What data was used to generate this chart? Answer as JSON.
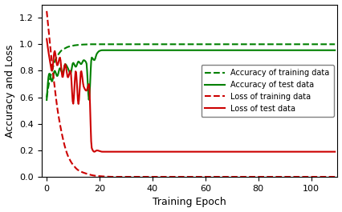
{
  "title": "",
  "xlabel": "Training Epoch",
  "ylabel": "Accuracy and Loss",
  "xlim": [
    -2,
    110
  ],
  "ylim": [
    0,
    1.3
  ],
  "yticks": [
    0.0,
    0.2,
    0.4,
    0.6,
    0.8,
    1.0,
    1.2
  ],
  "xticks": [
    0,
    20,
    40,
    60,
    80,
    100
  ],
  "legend": [
    "Accuracy of training data",
    "Accuracy of test data",
    "Loss of training data",
    "Loss of test data"
  ],
  "train_acc_color": "#008000",
  "test_acc_color": "#008000",
  "train_loss_color": "#cc0000",
  "test_loss_color": "#cc0000",
  "figsize": [
    4.26,
    2.65
  ],
  "dpi": 100,
  "train_acc_x": [
    0,
    1,
    2,
    3,
    4,
    5,
    6,
    7,
    8,
    9,
    10,
    11,
    12,
    13,
    14,
    15,
    16,
    17,
    18,
    19,
    20,
    21,
    22,
    23,
    24,
    25,
    30,
    40,
    50,
    60,
    70,
    80,
    90,
    100,
    109
  ],
  "train_acc_y": [
    0.6,
    0.72,
    0.8,
    0.87,
    0.91,
    0.94,
    0.96,
    0.97,
    0.98,
    0.985,
    0.99,
    0.993,
    0.995,
    0.997,
    0.998,
    0.999,
    1.0,
    1.0,
    1.0,
    1.0,
    1.0,
    1.0,
    1.0,
    1.0,
    1.0,
    1.0,
    1.0,
    1.0,
    1.0,
    1.0,
    1.0,
    1.0,
    1.0,
    1.0,
    1.0
  ],
  "test_acc_x": [
    0,
    1,
    2,
    3,
    4,
    5,
    6,
    7,
    8,
    9,
    10,
    11,
    12,
    13,
    14,
    15,
    16,
    17,
    18,
    19,
    20,
    21,
    22,
    25,
    30,
    40,
    50,
    60,
    70,
    80,
    90,
    100,
    109
  ],
  "test_acc_y": [
    0.58,
    0.78,
    0.72,
    0.8,
    0.76,
    0.82,
    0.78,
    0.85,
    0.82,
    0.78,
    0.86,
    0.83,
    0.87,
    0.85,
    0.88,
    0.86,
    0.58,
    0.9,
    0.88,
    0.93,
    0.95,
    0.955,
    0.955,
    0.955,
    0.955,
    0.955,
    0.955,
    0.955,
    0.955,
    0.955,
    0.955,
    0.955,
    0.955
  ],
  "train_loss_x": [
    0,
    1,
    2,
    3,
    4,
    5,
    6,
    7,
    8,
    9,
    10,
    12,
    15,
    18,
    20,
    22,
    25,
    30,
    40,
    50,
    60,
    109
  ],
  "train_loss_y": [
    1.25,
    1.05,
    0.85,
    0.68,
    0.52,
    0.4,
    0.3,
    0.22,
    0.16,
    0.12,
    0.09,
    0.05,
    0.025,
    0.01,
    0.006,
    0.003,
    0.001,
    0.001,
    0.001,
    0.001,
    0.001,
    0.001
  ],
  "test_loss_x": [
    0,
    1,
    2,
    3,
    4,
    5,
    6,
    7,
    8,
    9,
    10,
    11,
    12,
    13,
    14,
    15,
    16,
    17,
    18,
    19,
    20,
    21,
    22,
    23,
    25,
    30,
    40,
    50,
    60,
    70,
    80,
    90,
    100,
    109
  ],
  "test_loss_y": [
    1.04,
    0.9,
    0.8,
    0.95,
    0.84,
    0.9,
    0.75,
    0.85,
    0.75,
    0.8,
    0.55,
    0.8,
    0.55,
    0.8,
    0.68,
    0.65,
    0.7,
    0.22,
    0.19,
    0.2,
    0.195,
    0.19,
    0.19,
    0.19,
    0.19,
    0.19,
    0.19,
    0.19,
    0.19,
    0.19,
    0.19,
    0.19,
    0.19,
    0.19
  ]
}
